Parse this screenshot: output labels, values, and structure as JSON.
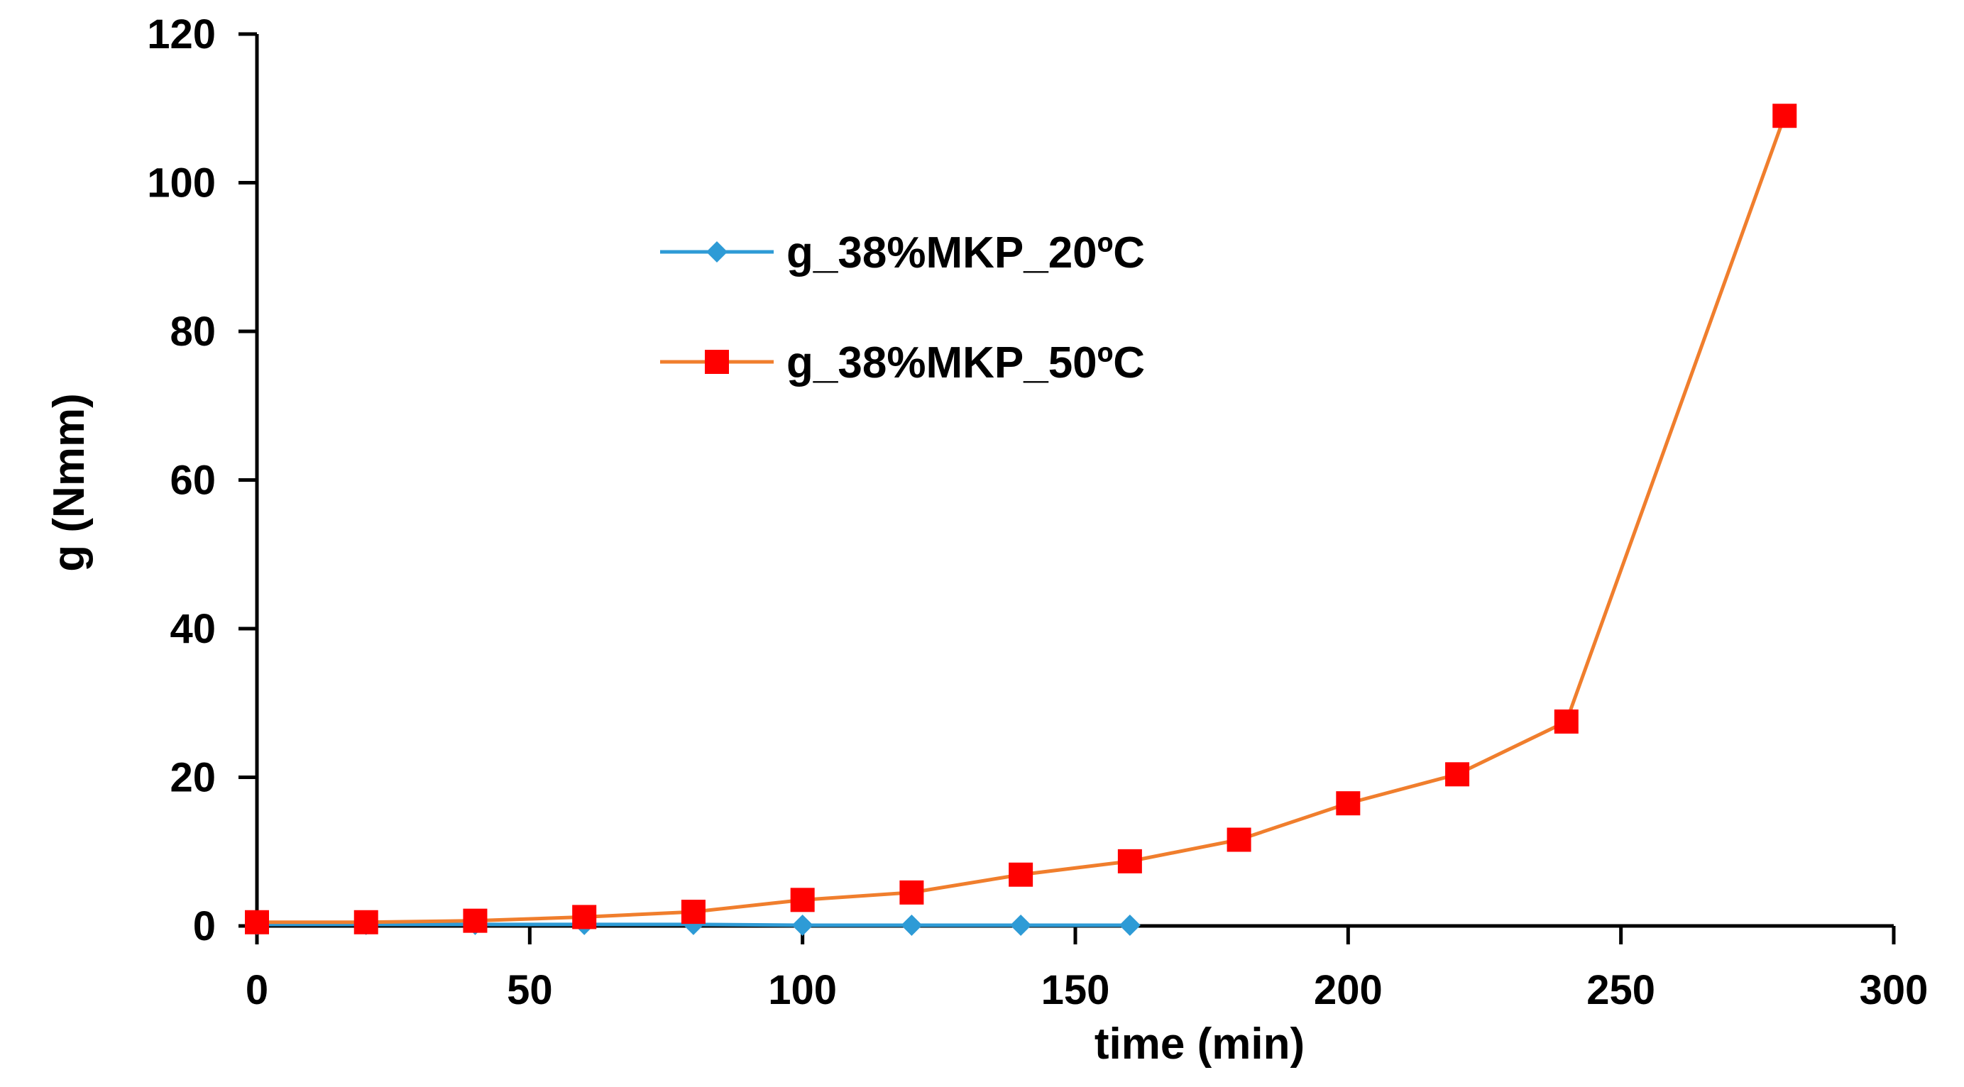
{
  "chart_data": {
    "type": "line",
    "title": "",
    "xlabel": "time (min)",
    "ylabel": "g (Nmm)",
    "xlim": [
      0,
      300
    ],
    "ylim": [
      0,
      120
    ],
    "xticks": [
      0,
      50,
      100,
      150,
      200,
      250,
      300
    ],
    "yticks": [
      0,
      20,
      40,
      60,
      80,
      100,
      120
    ],
    "grid": false,
    "legend": "upper-left-center",
    "series": [
      {
        "name": "g_38%MKP_20ºC",
        "color": "#2E9BD6",
        "marker": "diamond",
        "x": [
          0,
          20,
          40,
          60,
          80,
          100,
          120,
          140,
          160
        ],
        "y": [
          0.2,
          0.2,
          0.2,
          0.2,
          0.2,
          0.1,
          0.1,
          0.1,
          0.1
        ]
      },
      {
        "name": "g_38%MKP_50ºC",
        "color": "#F07E2D",
        "markerColor": "#FF0000",
        "marker": "square",
        "x": [
          0,
          20,
          40,
          60,
          80,
          100,
          120,
          140,
          160,
          180,
          200,
          220,
          240,
          280
        ],
        "y": [
          0.5,
          0.5,
          0.7,
          1.2,
          1.9,
          3.5,
          4.5,
          6.9,
          8.7,
          11.6,
          16.5,
          20.4,
          27.5,
          109
        ]
      }
    ]
  }
}
